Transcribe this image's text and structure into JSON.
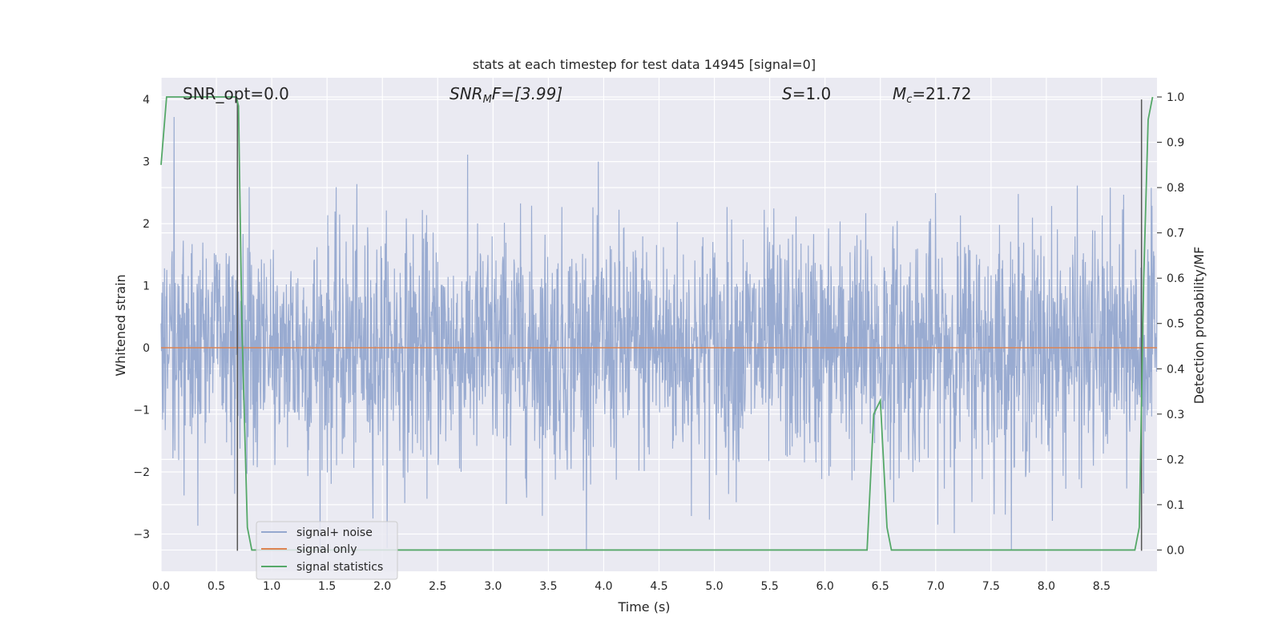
{
  "chart_data": {
    "type": "line",
    "title": "stats at each timestep for test data 14945 [signal=0]",
    "xlabel": "Time (s)",
    "ylabel_left": "Whitened strain",
    "ylabel_right": "Detection probability/MF",
    "xlim": [
      0.0,
      9.0
    ],
    "ylim_left": [
      -3.6,
      4.35
    ],
    "ylim_right": [
      -0.047,
      1.0425
    ],
    "x_ticks": [
      "0.0",
      "0.5",
      "1.0",
      "1.5",
      "2.0",
      "2.5",
      "3.0",
      "3.5",
      "4.0",
      "4.5",
      "5.0",
      "5.5",
      "6.0",
      "6.5",
      "7.0",
      "7.5",
      "8.0",
      "8.5"
    ],
    "x_tick_values": [
      0.0,
      0.5,
      1.0,
      1.5,
      2.0,
      2.5,
      3.0,
      3.5,
      4.0,
      4.5,
      5.0,
      5.5,
      6.0,
      6.5,
      7.0,
      7.5,
      8.0,
      8.5
    ],
    "y_ticks_left": [
      "−3",
      "−2",
      "−1",
      "0",
      "1",
      "2",
      "3",
      "4"
    ],
    "y_tick_values_left": [
      -3,
      -2,
      -1,
      0,
      1,
      2,
      3,
      4
    ],
    "y_ticks_right": [
      "0.0",
      "0.1",
      "0.2",
      "0.3",
      "0.4",
      "0.5",
      "0.6",
      "0.7",
      "0.8",
      "0.9",
      "1.0"
    ],
    "y_tick_values_right": [
      0.0,
      0.1,
      0.2,
      0.3,
      0.4,
      0.5,
      0.6,
      0.7,
      0.8,
      0.9,
      1.0
    ],
    "grid": true,
    "legend_position": "bottom-left",
    "annotations": {
      "snr_opt": "SNR_opt=0.0",
      "snr_mf_main": "SNR",
      "snr_mf_sub": "M",
      "snr_mf_tail": "F=[3.99]",
      "s_main": "S",
      "s_tail": "=1.0",
      "mc_main": "M",
      "mc_sub": "c",
      "mc_tail": "=21.72"
    },
    "series": [
      {
        "name": "signal+ noise",
        "color": "#95a8cf",
        "kind": "noise",
        "amplitude_range": [
          -3.25,
          4.0
        ]
      },
      {
        "name": "signal only",
        "color": "#dd8452",
        "kind": "constant",
        "value": 0.0
      },
      {
        "name": "signal statistics",
        "color": "#55a868",
        "axis": "right",
        "x": [
          0.0,
          0.05,
          0.1,
          0.2,
          0.5,
          0.68,
          0.7,
          0.73,
          0.78,
          0.82,
          1.0,
          6.0,
          6.38,
          6.44,
          6.5,
          6.56,
          6.6,
          6.62,
          8.8,
          8.84,
          8.88,
          8.92,
          8.96
        ],
        "y": [
          0.85,
          1.0,
          1.0,
          1.0,
          1.0,
          1.0,
          0.98,
          0.5,
          0.05,
          0.0,
          0.0,
          0.0,
          0.0,
          0.3,
          0.33,
          0.05,
          0.0,
          0.0,
          0.0,
          0.05,
          0.6,
          0.95,
          1.0
        ]
      }
    ],
    "vlines": [
      {
        "x": 0.69,
        "y_from": -3.27,
        "y_to": 4.0,
        "color": "#555555"
      },
      {
        "x": 8.86,
        "y_from": -3.27,
        "y_to": 4.0,
        "color": "#555555"
      }
    ]
  }
}
